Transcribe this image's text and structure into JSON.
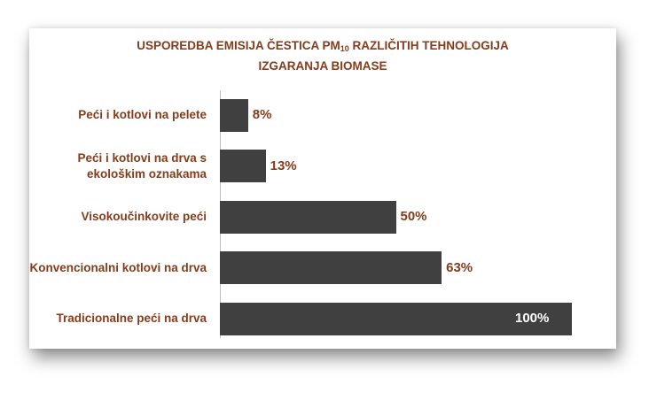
{
  "chart_data": {
    "type": "bar",
    "orientation": "horizontal",
    "title_main": "USPOREDBA EMISIJA ČESTICA PM",
    "title_sub": "10",
    "title_rest": " RAZLIČITIH TEHNOLOGIJA",
    "title_line2": "IZGARANJA BIOMASE",
    "categories": [
      "Peći i kotlovi na pelete",
      "Peći i kotlovi na drva s ekološkim oznakama",
      "Visokoučinkovite peći",
      "Konvencionalni kotlovi na drva",
      "Tradicionalne peći na drva"
    ],
    "values": [
      8,
      13,
      50,
      63,
      100
    ],
    "value_labels": [
      "8%",
      "13%",
      "50%",
      "63%",
      "100%"
    ],
    "unit": "%",
    "xlim": [
      0,
      100
    ],
    "grid": false,
    "legend": "none",
    "colors": {
      "bar": "#404040",
      "text": "#843c1a",
      "label_outside": "#843c1a",
      "label_inside": "#ffffff",
      "axis": "#bfbfbf"
    }
  }
}
